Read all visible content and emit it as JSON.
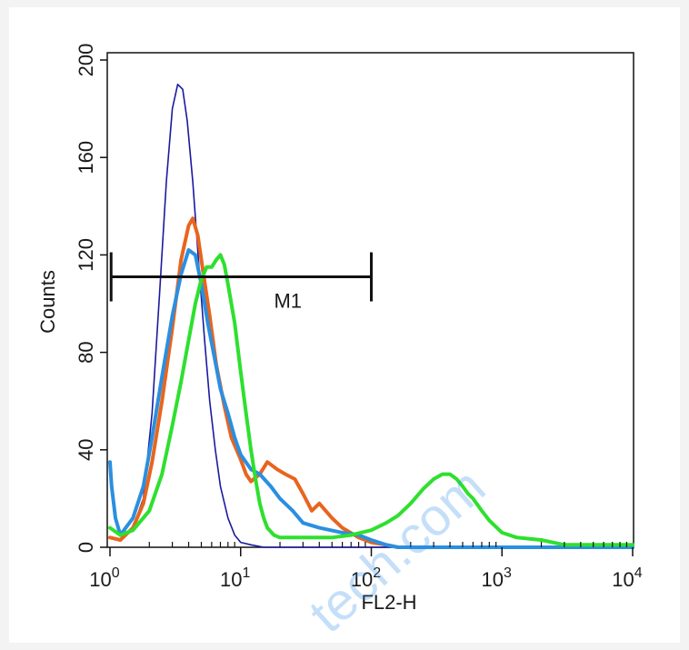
{
  "chart_data": {
    "type": "line",
    "x_scale": "log",
    "xlim": [
      1,
      10000
    ],
    "ylim": [
      0,
      200
    ],
    "xlabel": "FL2-H",
    "ylabel": "Counts",
    "x_tick_values": [
      1,
      10,
      100,
      1000,
      10000
    ],
    "x_ticks": [
      {
        "base": "10",
        "exp": "0"
      },
      {
        "base": "10",
        "exp": "1"
      },
      {
        "base": "10",
        "exp": "2"
      },
      {
        "base": "10",
        "exp": "3"
      },
      {
        "base": "10",
        "exp": "4"
      }
    ],
    "y_ticks": [
      "0",
      "40",
      "80",
      "120",
      "160",
      "200"
    ],
    "y_tick_values": [
      0,
      40,
      80,
      120,
      160,
      200
    ],
    "marker": {
      "label": "M1",
      "x_start": 1.02,
      "x_end": 100,
      "y": 111
    },
    "watermark": "tech.com",
    "grid": false,
    "series": [
      {
        "color": "#1a1aa0",
        "x": [
          1,
          1.2,
          1.5,
          1.8,
          2.1,
          2.4,
          2.7,
          3,
          3.3,
          3.6,
          3.9,
          4.3,
          4.8,
          5.3,
          5.8,
          6.4,
          7,
          8,
          9,
          10,
          12,
          15,
          20,
          30,
          60,
          10000
        ],
        "y": [
          4,
          3,
          8,
          20,
          55,
          105,
          150,
          180,
          190,
          188,
          175,
          150,
          115,
          85,
          60,
          40,
          25,
          12,
          5,
          2,
          1,
          0,
          0,
          0,
          0,
          0
        ]
      },
      {
        "color": "#e8651e",
        "x": [
          1,
          1.2,
          1.5,
          1.8,
          2.1,
          2.5,
          3,
          3.5,
          4,
          4.3,
          4.7,
          5.2,
          5.8,
          6.5,
          7.5,
          8.5,
          10,
          11,
          12,
          14,
          16,
          19,
          22,
          26,
          30,
          35,
          40,
          50,
          60,
          80,
          100,
          130,
          160,
          10000
        ],
        "y": [
          4,
          3,
          8,
          18,
          35,
          60,
          90,
          118,
          132,
          135,
          128,
          112,
          95,
          75,
          58,
          45,
          36,
          30,
          27,
          30,
          35,
          32,
          30,
          28,
          22,
          15,
          18,
          12,
          8,
          4,
          2,
          1,
          0,
          0
        ]
      },
      {
        "color": "#2b8fe0",
        "x": [
          1,
          1.03,
          1.1,
          1.2,
          1.5,
          1.8,
          2.1,
          2.5,
          3,
          3.5,
          4,
          4.5,
          5,
          5.6,
          6.3,
          7,
          8,
          9,
          10,
          12,
          14,
          17,
          20,
          25,
          30,
          40,
          60,
          80,
          100,
          130,
          160,
          10000
        ],
        "y": [
          35,
          25,
          12,
          5,
          12,
          25,
          45,
          70,
          95,
          112,
          122,
          120,
          108,
          92,
          78,
          65,
          55,
          45,
          38,
          32,
          30,
          25,
          20,
          15,
          10,
          8,
          6,
          5,
          3,
          1,
          0,
          0
        ]
      },
      {
        "color": "#2ee02e",
        "x": [
          1,
          1.2,
          1.5,
          2,
          2.5,
          3,
          3.5,
          4,
          4.5,
          5,
          5.5,
          6,
          6.5,
          7,
          7.5,
          8,
          9,
          10,
          11,
          12,
          13,
          14,
          15,
          16,
          18,
          20,
          30,
          50,
          70,
          100,
          130,
          160,
          200,
          250,
          300,
          350,
          400,
          450,
          500,
          550,
          600,
          700,
          800,
          1000,
          1300,
          2000,
          3000,
          5000,
          10000
        ],
        "y": [
          8,
          5,
          7,
          15,
          30,
          50,
          68,
          85,
          100,
          110,
          115,
          115,
          118,
          120,
          116,
          108,
          92,
          72,
          55,
          40,
          28,
          18,
          12,
          8,
          5,
          4,
          4,
          4,
          5,
          7,
          10,
          13,
          18,
          24,
          28,
          30,
          30,
          28,
          25,
          22,
          20,
          15,
          11,
          6,
          4,
          3,
          1,
          1,
          1
        ]
      }
    ]
  }
}
